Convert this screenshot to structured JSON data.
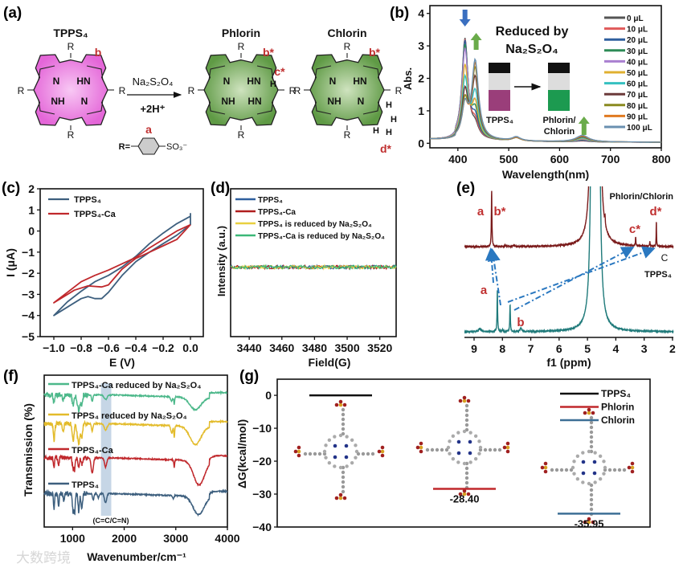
{
  "panel_labels": [
    "(a)",
    "(b)",
    "(c)",
    "(d)",
    "(e)",
    "(f)",
    "(g)"
  ],
  "watermark": "大数跨境",
  "panel_a": {
    "reagent": "Na₂S₂O₄",
    "proton": "+2H⁺",
    "r_prefix": "R=",
    "r_suffix": "SO₃⁻",
    "ring_label": "a",
    "structures": [
      {
        "name": "TPPS₄",
        "atoms": [
          "N",
          "HN",
          "NH",
          "N"
        ],
        "substituent": "R",
        "site_labels": [
          "b"
        ],
        "extra_h": [],
        "fill": "#e97ee0"
      },
      {
        "name": "Phlorin",
        "atoms": [
          "N",
          "HN",
          "NH",
          "HN"
        ],
        "substituent": "R",
        "site_labels": [
          "b*",
          "c*"
        ],
        "extra_h": [
          "H"
        ],
        "fill": "#7fae62"
      },
      {
        "name": "Chlorin",
        "atoms": [
          "N",
          "HN",
          "NH",
          "N"
        ],
        "substituent": "R",
        "site_labels": [
          "b*",
          "d*"
        ],
        "extra_h": [
          "H",
          "H",
          "H",
          "H"
        ],
        "fill": "#7fae62"
      }
    ]
  },
  "chart_data": [
    {
      "panel": "(b)",
      "type": "line",
      "title_lines": [
        "Reduced by",
        "Na₂S₂O₄"
      ],
      "xlabel": "Wavelength(nm)",
      "ylabel": "Abs.",
      "xlim": [
        345,
        800
      ],
      "ylim": [
        -0.14,
        4.24
      ],
      "xticks": [
        400,
        500,
        600,
        700,
        800
      ],
      "yticks": [
        0,
        1,
        2,
        3,
        4
      ],
      "peak_centers": [
        414,
        434,
        515,
        645
      ],
      "peak_widths": [
        7,
        8,
        10,
        15
      ],
      "inset_labels": [
        "TPPS₄",
        "Phlorin/",
        "Chlorin"
      ],
      "legend": "right",
      "series": [
        {
          "name": "0 μL",
          "color": "#555555",
          "heights": [
            3.1,
            0.35,
            0.1,
            0.03
          ]
        },
        {
          "name": "10 μL",
          "color": "#e05a5a",
          "heights": [
            3.05,
            0.45,
            0.1,
            0.04
          ]
        },
        {
          "name": "20 μL",
          "color": "#2f5f9e",
          "heights": [
            3.0,
            0.6,
            0.1,
            0.05
          ]
        },
        {
          "name": "30 μL",
          "color": "#2e8b57",
          "heights": [
            2.85,
            0.8,
            0.1,
            0.07
          ]
        },
        {
          "name": "40 μL",
          "color": "#a97fd0",
          "heights": [
            2.7,
            1.0,
            0.1,
            0.08
          ]
        },
        {
          "name": "50 μL",
          "color": "#e0b030",
          "heights": [
            2.2,
            1.05,
            0.1,
            0.1
          ]
        },
        {
          "name": "60 μL",
          "color": "#35c0c0",
          "heights": [
            1.8,
            1.4,
            0.1,
            0.12
          ]
        },
        {
          "name": "70 μL",
          "color": "#6b3a3a",
          "heights": [
            1.4,
            1.85,
            0.1,
            0.15
          ]
        },
        {
          "name": "80 μL",
          "color": "#8a8a20",
          "heights": [
            1.1,
            2.15,
            0.1,
            0.17
          ]
        },
        {
          "name": "90 μL",
          "color": "#e07a20",
          "heights": [
            0.95,
            2.3,
            0.1,
            0.18
          ]
        },
        {
          "name": "100 μL",
          "color": "#6a90b0",
          "heights": [
            0.95,
            2.4,
            0.12,
            0.2
          ]
        }
      ]
    },
    {
      "panel": "(c)",
      "type": "line",
      "xlabel": "E (V)",
      "ylabel": "I (μA)",
      "xlim": [
        -1.1,
        0.094
      ],
      "ylim": [
        -5,
        2
      ],
      "xticks": [
        -1.0,
        -0.8,
        -0.6,
        -0.4,
        -0.2,
        0.0
      ],
      "yticks": [
        -5,
        -4,
        -3,
        -2,
        -1,
        0,
        1,
        2
      ],
      "legend": "top-left",
      "series": [
        {
          "name": "TPPS₄",
          "color": "#3d5f7e",
          "points": [
            [
              0,
              0.85
            ],
            [
              0,
              0.3
            ],
            [
              -0.1,
              -0.2
            ],
            [
              -0.2,
              -0.6
            ],
            [
              -0.3,
              -1.0
            ],
            [
              -0.4,
              -1.45
            ],
            [
              -0.5,
              -2.1
            ],
            [
              -0.6,
              -2.9
            ],
            [
              -0.65,
              -3.2
            ],
            [
              -0.7,
              -3.2
            ],
            [
              -0.75,
              -3.1
            ],
            [
              -0.8,
              -3.2
            ],
            [
              -0.9,
              -3.6
            ],
            [
              -1.0,
              -4.0
            ],
            [
              -0.9,
              -3.35
            ],
            [
              -0.8,
              -2.85
            ],
            [
              -0.7,
              -2.4
            ],
            [
              -0.6,
              -2.1
            ],
            [
              -0.5,
              -1.7
            ],
            [
              -0.4,
              -1.2
            ],
            [
              -0.3,
              -0.6
            ],
            [
              -0.2,
              -0.1
            ],
            [
              -0.1,
              0.35
            ],
            [
              0,
              0.7
            ]
          ]
        },
        {
          "name": "TPPS₄-Ca",
          "color": "#c0282c",
          "points": [
            [
              0,
              0.3
            ],
            [
              -0.1,
              -0.4
            ],
            [
              -0.2,
              -0.7
            ],
            [
              -0.3,
              -1.0
            ],
            [
              -0.4,
              -1.3
            ],
            [
              -0.5,
              -1.8
            ],
            [
              -0.6,
              -2.55
            ],
            [
              -0.65,
              -2.65
            ],
            [
              -0.75,
              -2.6
            ],
            [
              -0.85,
              -2.8
            ],
            [
              -1.0,
              -3.4
            ],
            [
              -0.9,
              -2.9
            ],
            [
              -0.8,
              -2.4
            ],
            [
              -0.7,
              -2.1
            ],
            [
              -0.6,
              -1.85
            ],
            [
              -0.5,
              -1.55
            ],
            [
              -0.4,
              -1.25
            ],
            [
              -0.3,
              -0.8
            ],
            [
              -0.2,
              -0.4
            ],
            [
              -0.1,
              0.0
            ],
            [
              0,
              0.3
            ]
          ]
        }
      ]
    },
    {
      "panel": "(d)",
      "type": "line",
      "xlabel": "Field(G)",
      "ylabel": "Intensity (a.u.)",
      "xlim": [
        3428.6,
        3530
      ],
      "ylim": [
        0,
        1
      ],
      "xticks": [
        3440,
        3460,
        3480,
        3500,
        3520
      ],
      "level": 0.47,
      "noise": 0.012,
      "legend": "top-left",
      "series": [
        {
          "name": "TPPS₄",
          "color": "#2f5f9e"
        },
        {
          "name": "TPPS₄-Ca",
          "color": "#b01e1e"
        },
        {
          "name": "TPPS₄ is reduced by Na₂S₂O₄",
          "color": "#e8d040"
        },
        {
          "name": "TPPS₄-Ca is reduced by Na₂S₂O₄",
          "color": "#3cb878"
        }
      ]
    },
    {
      "panel": "(e)",
      "type": "line",
      "xlabel": "f1 (ppm)",
      "xlim": [
        9.34,
        1.97
      ],
      "ylim": [
        0,
        1
      ],
      "xticks": [
        9,
        8,
        7,
        6,
        5,
        4,
        3,
        2
      ],
      "series": [
        {
          "name": "Phlorin/Chlorin",
          "color": "#7a1a1a",
          "offset": 0.6,
          "peaks": [
            [
              8.38,
              0.37,
              0.012
            ],
            [
              7.9,
              0.01,
              0.03
            ],
            [
              7.6,
              0.01,
              0.03
            ],
            [
              4.82,
              3,
              0.05
            ],
            [
              4.62,
              3,
              0.05
            ],
            [
              4.38,
              0.05,
              0.01
            ],
            [
              3.3,
              0.06,
              0.01
            ],
            [
              2.8,
              0.03,
              0.01
            ],
            [
              2.57,
              0.17,
              0.008
            ]
          ]
        },
        {
          "name": "TPPS₄",
          "color": "#1f7a7a",
          "offset": 0.037,
          "peaks": [
            [
              8.8,
              0.02,
              0.05
            ],
            [
              8.18,
              0.27,
              0.012
            ],
            [
              8.0,
              0.01,
              0.03
            ],
            [
              7.73,
              0.18,
              0.012
            ],
            [
              7.35,
              0.025,
              0.03
            ],
            [
              4.82,
              3,
              0.05
            ],
            [
              4.62,
              3,
              0.05
            ]
          ]
        }
      ],
      "annotations": {
        "a_top": "a",
        "b_top": "b*",
        "c_top": "c*",
        "d_top": "d*",
        "c_mark": "C",
        "a_bottom": "a",
        "b_bottom": "b"
      }
    },
    {
      "panel": "(f)",
      "type": "line",
      "xlabel": "Wavenumber/cm⁻¹",
      "ylabel": "Transmission (%)",
      "xlim": [
        450,
        4000
      ],
      "ylim": [
        0,
        1
      ],
      "xticks": [
        1000,
        2000,
        3000,
        4000
      ],
      "band": {
        "range": [
          1550,
          1750
        ],
        "label": "(C=C/C=N)"
      },
      "series": [
        {
          "name": "TPPS₄-Ca reduced by Na₂S₂O₄",
          "color": "#4cb88a",
          "offset": 0.87,
          "dips": [
            [
              640,
              0.06,
              20
            ],
            [
              820,
              0.04,
              20
            ],
            [
              1010,
              0.07,
              25
            ],
            [
              1120,
              0.1,
              40
            ],
            [
              1180,
              0.06,
              20
            ],
            [
              1380,
              0.04,
              20
            ],
            [
              1640,
              0.03,
              40
            ],
            [
              2920,
              0.03,
              25
            ],
            [
              2970,
              0.05,
              12
            ],
            [
              3380,
              0.08,
              150
            ]
          ]
        },
        {
          "name": "TPPS₄ reduced by Na₂S₂O₄",
          "color": "#e3bb2a",
          "offset": 0.68,
          "dips": [
            [
              640,
              0.11,
              20
            ],
            [
              820,
              0.06,
              20
            ],
            [
              1010,
              0.12,
              25
            ],
            [
              1120,
              0.13,
              40
            ],
            [
              1180,
              0.08,
              20
            ],
            [
              1380,
              0.05,
              20
            ],
            [
              1640,
              0.04,
              40
            ],
            [
              2920,
              0.05,
              25
            ],
            [
              2970,
              0.08,
              12
            ],
            [
              3380,
              0.12,
              150
            ]
          ]
        },
        {
          "name": "TPPS₄-Ca",
          "color": "#c0282c",
          "offset": 0.455,
          "dips": [
            [
              640,
              0.06,
              15
            ],
            [
              730,
              0.05,
              15
            ],
            [
              1010,
              0.07,
              20
            ],
            [
              1040,
              0.07,
              15
            ],
            [
              1120,
              0.06,
              20
            ],
            [
              1180,
              0.04,
              20
            ],
            [
              1380,
              0.1,
              30
            ],
            [
              1640,
              0.06,
              30
            ],
            [
              2970,
              0.05,
              12
            ],
            [
              3450,
              0.16,
              150
            ]
          ]
        },
        {
          "name": "TPPS₄",
          "color": "#3d5f7e",
          "offset": 0.22,
          "dips": [
            [
              640,
              0.1,
              15
            ],
            [
              730,
              0.08,
              15
            ],
            [
              830,
              0.06,
              15
            ],
            [
              1010,
              0.12,
              20
            ],
            [
              1040,
              0.12,
              15
            ],
            [
              1120,
              0.12,
              20
            ],
            [
              1180,
              0.1,
              20
            ],
            [
              1400,
              0.04,
              20
            ],
            [
              1500,
              0.03,
              20
            ],
            [
              1640,
              0.06,
              30
            ],
            [
              2950,
              0.02,
              20
            ],
            [
              3440,
              0.12,
              150
            ]
          ]
        }
      ]
    },
    {
      "panel": "(g)",
      "type": "bar",
      "ylabel": "ΔG(kcal/mol)",
      "ylim": [
        -40,
        4.9
      ],
      "yticks": [
        0,
        -10,
        -20,
        -30,
        -40
      ],
      "legend": "top-right",
      "series": [
        {
          "name": "TPPS₄",
          "color": "#111111",
          "value": 0,
          "label": ""
        },
        {
          "name": "Phlorin",
          "color": "#c0282c",
          "value": -28.4,
          "label": "-28.40"
        },
        {
          "name": "Chlorin",
          "color": "#3d6f96",
          "value": -35.95,
          "label": "-35.95"
        }
      ]
    }
  ]
}
